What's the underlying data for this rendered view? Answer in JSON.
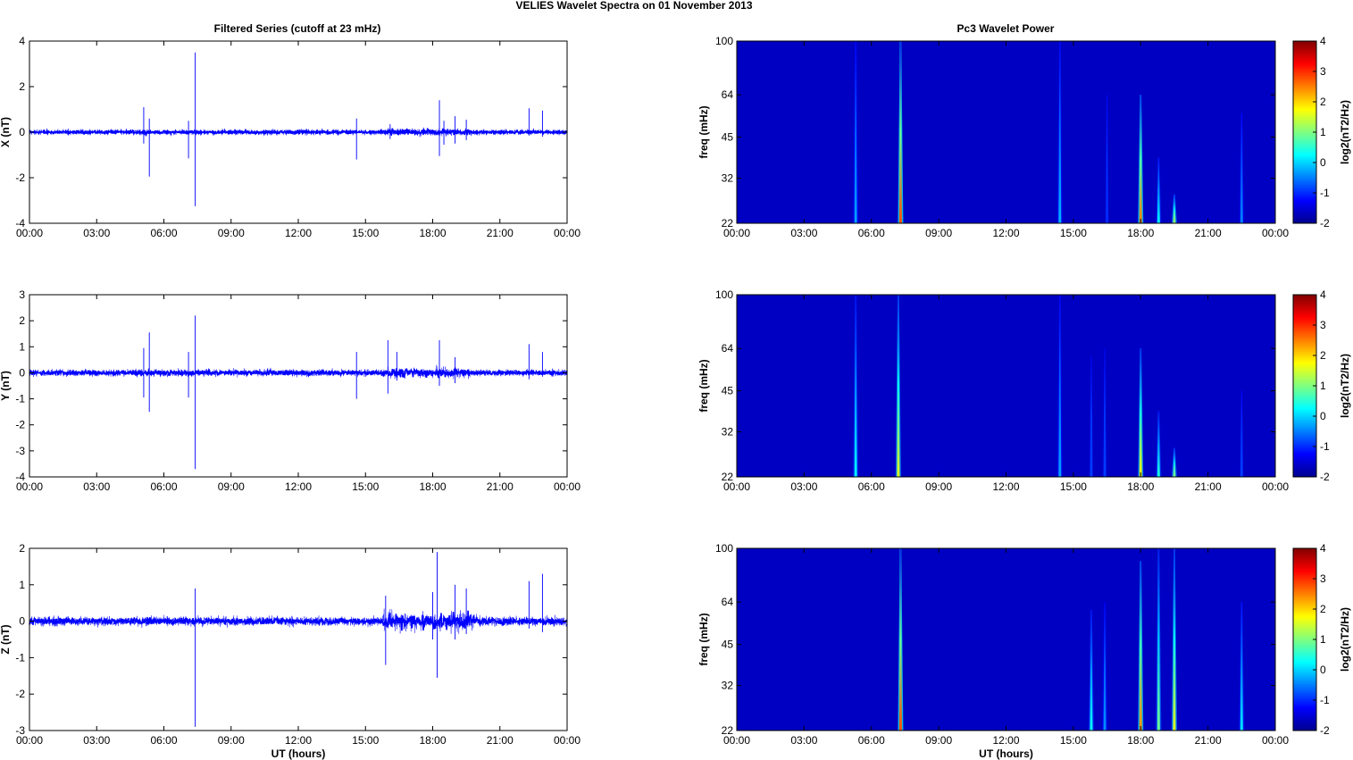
{
  "figure": {
    "suptitle": "VELIES Wavelet Spectra on 01 November  2013",
    "left_title": "Filtered Series (cutoff at 23 mHz)",
    "right_title": "Pc3 Wavelet Power",
    "xlabel": "UT (hours)",
    "freq_ylabel": "freq (mHz)",
    "cbar_label": "log2(nT2/Hz)"
  },
  "chart_data": [
    {
      "type": "line",
      "title": "Filtered Series (cutoff at 23 mHz)",
      "component": "X",
      "ylabel": "X (nT)",
      "xlabel": "",
      "xlim": [
        0,
        24
      ],
      "ylim": [
        -4,
        4
      ],
      "yticks": [
        "4",
        "2",
        "0",
        "-2",
        "-4"
      ],
      "xticks": [
        "00:00",
        "03:00",
        "06:00",
        "09:00",
        "12:00",
        "15:00",
        "18:00",
        "21:00",
        "00:00"
      ],
      "color": "#0000ff",
      "baseline_noise": 0.07,
      "spikes": [
        [
          5.1,
          1.1,
          -0.5
        ],
        [
          5.35,
          0.6,
          -1.95
        ],
        [
          7.1,
          0.5,
          -1.15
        ],
        [
          7.4,
          3.5,
          -3.25
        ],
        [
          14.6,
          0.6,
          -1.2
        ],
        [
          16.1,
          0.35,
          -0.3
        ],
        [
          18.3,
          1.4,
          -1.05
        ],
        [
          18.5,
          0.5,
          -0.55
        ],
        [
          19.0,
          0.7,
          -0.5
        ],
        [
          19.5,
          0.55,
          -0.35
        ],
        [
          22.3,
          1.05,
          -0.15
        ],
        [
          22.9,
          0.95,
          -0.2
        ]
      ],
      "bursts": [
        [
          16.0,
          19.8,
          0.18
        ]
      ]
    },
    {
      "type": "line",
      "title": "",
      "component": "Y",
      "ylabel": "Y (nT)",
      "xlabel": "",
      "xlim": [
        0,
        24
      ],
      "ylim": [
        -4,
        3
      ],
      "yticks": [
        "3",
        "2",
        "1",
        "0",
        "-1",
        "-2",
        "-3",
        "-4"
      ],
      "xticks": [
        "00:00",
        "03:00",
        "06:00",
        "09:00",
        "12:00",
        "15:00",
        "18:00",
        "21:00",
        "00:00"
      ],
      "color": "#0000ff",
      "baseline_noise": 0.09,
      "spikes": [
        [
          5.1,
          0.95,
          -0.95
        ],
        [
          5.35,
          1.55,
          -1.5
        ],
        [
          7.1,
          0.8,
          -0.95
        ],
        [
          7.4,
          2.2,
          -3.7
        ],
        [
          14.6,
          0.8,
          -1.0
        ],
        [
          16.0,
          1.25,
          -0.8
        ],
        [
          16.4,
          0.8,
          -0.3
        ],
        [
          18.3,
          1.25,
          -0.5
        ],
        [
          19.0,
          0.6,
          -0.4
        ],
        [
          22.3,
          1.1,
          -0.25
        ],
        [
          22.9,
          0.8,
          -0.15
        ]
      ],
      "bursts": [
        [
          16.0,
          19.8,
          0.22
        ]
      ]
    },
    {
      "type": "line",
      "title": "",
      "component": "Z",
      "ylabel": "Z (nT)",
      "xlabel": "UT (hours)",
      "xlim": [
        0,
        24
      ],
      "ylim": [
        -3,
        2
      ],
      "yticks": [
        "2",
        "1",
        "0",
        "-1",
        "-2",
        "-3"
      ],
      "xticks": [
        "00:00",
        "03:00",
        "06:00",
        "09:00",
        "12:00",
        "15:00",
        "18:00",
        "21:00",
        "00:00"
      ],
      "color": "#0000ff",
      "baseline_noise": 0.09,
      "spikes": [
        [
          7.4,
          0.9,
          -2.9
        ],
        [
          15.9,
          0.7,
          -1.2
        ],
        [
          18.2,
          1.9,
          -1.55
        ],
        [
          18.0,
          0.8,
          -0.5
        ],
        [
          19.0,
          1.0,
          -0.5
        ],
        [
          19.5,
          0.9,
          -0.35
        ],
        [
          22.3,
          1.1,
          -0.2
        ],
        [
          22.9,
          1.3,
          -0.3
        ]
      ],
      "bursts": [
        [
          15.8,
          20.0,
          0.3
        ]
      ]
    },
    {
      "type": "heatmap",
      "title": "Pc3 Wavelet Power",
      "ylabel": "freq (mHz)",
      "xlabel": "",
      "xlim": [
        0,
        24
      ],
      "ylim": [
        22,
        100
      ],
      "y_scale": "log",
      "yticks": [
        "100",
        "64",
        "45",
        "32",
        "22"
      ],
      "xticks": [
        "00:00",
        "03:00",
        "06:00",
        "09:00",
        "12:00",
        "15:00",
        "18:00",
        "21:00",
        "00:00"
      ],
      "colorbar": {
        "label": "log2(nT2/Hz)",
        "range": [
          -2,
          4
        ],
        "ticks": [
          "4",
          "3",
          "2",
          "1",
          "0",
          "-1",
          "-2"
        ],
        "colormap": "jet"
      },
      "background": -1.6,
      "events": [
        [
          5.3,
          -0.3,
          100
        ],
        [
          7.3,
          2.8,
          100
        ],
        [
          14.4,
          -0.2,
          100
        ],
        [
          16.5,
          -1.0,
          64
        ],
        [
          18.0,
          2.5,
          64
        ],
        [
          18.8,
          0.2,
          38
        ],
        [
          19.5,
          1.2,
          28
        ],
        [
          22.5,
          -0.5,
          55
        ]
      ]
    },
    {
      "type": "heatmap",
      "title": "",
      "ylabel": "freq (mHz)",
      "xlabel": "",
      "xlim": [
        0,
        24
      ],
      "ylim": [
        22,
        100
      ],
      "y_scale": "log",
      "yticks": [
        "100",
        "64",
        "45",
        "32",
        "22"
      ],
      "xticks": [
        "00:00",
        "03:00",
        "06:00",
        "09:00",
        "12:00",
        "15:00",
        "18:00",
        "21:00",
        "00:00"
      ],
      "colorbar": {
        "label": "log2(nT2/Hz)",
        "range": [
          -2,
          4
        ],
        "ticks": [
          "4",
          "3",
          "2",
          "1",
          "0",
          "-1",
          "-2"
        ],
        "colormap": "jet"
      },
      "background": -1.6,
      "events": [
        [
          5.3,
          0.2,
          100
        ],
        [
          7.2,
          1.6,
          100
        ],
        [
          14.4,
          -0.3,
          100
        ],
        [
          15.8,
          -0.9,
          60
        ],
        [
          16.4,
          -0.9,
          64
        ],
        [
          18.0,
          1.8,
          64
        ],
        [
          18.8,
          0.4,
          38
        ],
        [
          19.5,
          1.0,
          28
        ],
        [
          22.5,
          -0.9,
          45
        ]
      ]
    },
    {
      "type": "heatmap",
      "title": "",
      "ylabel": "freq (mHz)",
      "xlabel": "UT (hours)",
      "xlim": [
        0,
        24
      ],
      "ylim": [
        22,
        100
      ],
      "y_scale": "log",
      "yticks": [
        "100",
        "64",
        "45",
        "32",
        "22"
      ],
      "xticks": [
        "00:00",
        "03:00",
        "06:00",
        "09:00",
        "12:00",
        "15:00",
        "18:00",
        "21:00",
        "00:00"
      ],
      "colorbar": {
        "label": "log2(nT2/Hz)",
        "range": [
          -2,
          4
        ],
        "ticks": [
          "4",
          "3",
          "2",
          "1",
          "0",
          "-1",
          "-2"
        ],
        "colormap": "jet"
      },
      "background": -1.6,
      "events": [
        [
          7.3,
          2.8,
          100
        ],
        [
          15.8,
          0.3,
          60
        ],
        [
          16.4,
          -0.4,
          64
        ],
        [
          18.0,
          2.4,
          90
        ],
        [
          18.8,
          0.9,
          100
        ],
        [
          19.5,
          1.6,
          100
        ],
        [
          22.5,
          0.1,
          64
        ]
      ]
    }
  ]
}
